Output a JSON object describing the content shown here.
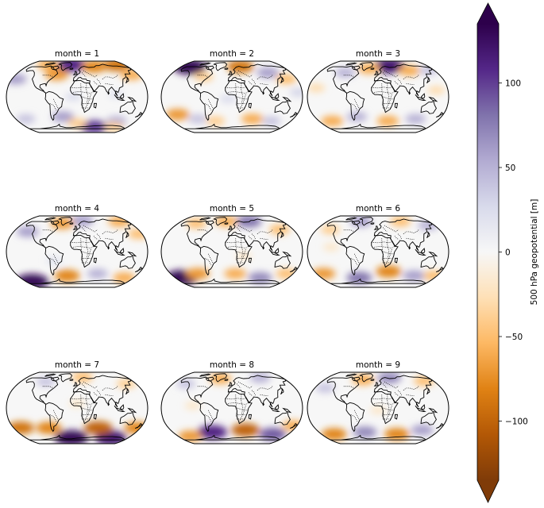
{
  "chart_data": {
    "type": "map-grid",
    "projection": "Robinson",
    "panels": [
      {
        "title": "month = 1",
        "anomalies": [
          {
            "lon": -20,
            "lat": 75,
            "value": 110
          },
          {
            "lon": 60,
            "lat": 70,
            "value": -80
          },
          {
            "lon": 150,
            "lat": 75,
            "value": -90
          },
          {
            "lon": -110,
            "lat": 75,
            "value": -60
          },
          {
            "lon": -170,
            "lat": 40,
            "value": 60
          },
          {
            "lon": 160,
            "lat": 50,
            "value": -60
          },
          {
            "lon": -60,
            "lat": 50,
            "value": -70
          },
          {
            "lon": -40,
            "lat": -45,
            "value": 60
          },
          {
            "lon": 60,
            "lat": -70,
            "value": 100
          },
          {
            "lon": 0,
            "lat": -60,
            "value": -40
          },
          {
            "lon": -150,
            "lat": -50,
            "value": 40
          },
          {
            "lon": 120,
            "lat": -55,
            "value": 50
          },
          {
            "lon": 130,
            "lat": -70,
            "value": -40
          },
          {
            "lon": -10,
            "lat": 0,
            "value": 25
          },
          {
            "lon": 100,
            "lat": 5,
            "value": 20
          }
        ]
      },
      {
        "title": "month = 2",
        "anomalies": [
          {
            "lon": -150,
            "lat": 70,
            "value": 130
          },
          {
            "lon": 30,
            "lat": 70,
            "value": -90
          },
          {
            "lon": 110,
            "lat": 55,
            "value": 60
          },
          {
            "lon": 150,
            "lat": 40,
            "value": -50
          },
          {
            "lon": -80,
            "lat": 45,
            "value": -40
          },
          {
            "lon": -150,
            "lat": -40,
            "value": -70
          },
          {
            "lon": -100,
            "lat": -50,
            "value": 40
          },
          {
            "lon": -50,
            "lat": -55,
            "value": -40
          },
          {
            "lon": 60,
            "lat": -50,
            "value": -60
          },
          {
            "lon": 120,
            "lat": -55,
            "value": 40
          },
          {
            "lon": -10,
            "lat": -5,
            "value": 25
          },
          {
            "lon": 170,
            "lat": 10,
            "value": 30
          }
        ]
      },
      {
        "title": "month = 3",
        "anomalies": [
          {
            "lon": 40,
            "lat": 72,
            "value": 120
          },
          {
            "lon": -30,
            "lat": 65,
            "value": -60
          },
          {
            "lon": 100,
            "lat": 60,
            "value": -60
          },
          {
            "lon": -100,
            "lat": 55,
            "value": 50
          },
          {
            "lon": 160,
            "lat": 60,
            "value": 40
          },
          {
            "lon": -140,
            "lat": -55,
            "value": -60
          },
          {
            "lon": -60,
            "lat": -45,
            "value": 50
          },
          {
            "lon": 30,
            "lat": -55,
            "value": -60
          },
          {
            "lon": 110,
            "lat": -50,
            "value": 50
          },
          {
            "lon": -160,
            "lat": 20,
            "value": -30
          },
          {
            "lon": 150,
            "lat": 15,
            "value": -30
          }
        ]
      },
      {
        "title": "month = 4",
        "anomalies": [
          {
            "lon": 20,
            "lat": 72,
            "value": 60
          },
          {
            "lon": -50,
            "lat": 65,
            "value": -70
          },
          {
            "lon": 150,
            "lat": 70,
            "value": -60
          },
          {
            "lon": -140,
            "lat": 45,
            "value": 60
          },
          {
            "lon": 170,
            "lat": 40,
            "value": -50
          },
          {
            "lon": -160,
            "lat": -70,
            "value": 130
          },
          {
            "lon": -30,
            "lat": -55,
            "value": -80
          },
          {
            "lon": 60,
            "lat": -50,
            "value": 50
          },
          {
            "lon": 150,
            "lat": -60,
            "value": -60
          },
          {
            "lon": -60,
            "lat": -20,
            "value": 20
          }
        ]
      },
      {
        "title": "month = 5",
        "anomalies": [
          {
            "lon": 60,
            "lat": 70,
            "value": 80
          },
          {
            "lon": -20,
            "lat": 70,
            "value": -60
          },
          {
            "lon": -120,
            "lat": 65,
            "value": -50
          },
          {
            "lon": 140,
            "lat": 50,
            "value": -50
          },
          {
            "lon": -160,
            "lat": -60,
            "value": 130
          },
          {
            "lon": -100,
            "lat": -50,
            "value": -70
          },
          {
            "lon": 10,
            "lat": -50,
            "value": -60
          },
          {
            "lon": 90,
            "lat": -60,
            "value": 70
          },
          {
            "lon": 160,
            "lat": -50,
            "value": -50
          },
          {
            "lon": 30,
            "lat": -10,
            "value": -20
          }
        ]
      },
      {
        "title": "month = 6",
        "anomalies": [
          {
            "lon": -60,
            "lat": 70,
            "value": 60
          },
          {
            "lon": 80,
            "lat": 70,
            "value": -50
          },
          {
            "lon": 160,
            "lat": 60,
            "value": 50
          },
          {
            "lon": -140,
            "lat": 50,
            "value": -40
          },
          {
            "lon": -160,
            "lat": -50,
            "value": -70
          },
          {
            "lon": -60,
            "lat": -60,
            "value": 80
          },
          {
            "lon": 30,
            "lat": -45,
            "value": -80
          },
          {
            "lon": 110,
            "lat": -55,
            "value": 60
          },
          {
            "lon": 170,
            "lat": -55,
            "value": -50
          },
          {
            "lon": -120,
            "lat": 10,
            "value": -20
          }
        ]
      },
      {
        "title": "month = 7",
        "anomalies": [
          {
            "lon": 20,
            "lat": 72,
            "value": -50
          },
          {
            "lon": -100,
            "lat": 60,
            "value": 40
          },
          {
            "lon": 150,
            "lat": 55,
            "value": -40
          },
          {
            "lon": -160,
            "lat": -45,
            "value": -90
          },
          {
            "lon": -20,
            "lat": -70,
            "value": 130
          },
          {
            "lon": 120,
            "lat": -70,
            "value": 120
          },
          {
            "lon": 60,
            "lat": -45,
            "value": -100
          },
          {
            "lon": -80,
            "lat": -45,
            "value": -80
          },
          {
            "lon": 170,
            "lat": -45,
            "value": -80
          },
          {
            "lon": 0,
            "lat": 10,
            "value": -20
          }
        ]
      },
      {
        "title": "month = 8",
        "anomalies": [
          {
            "lon": -40,
            "lat": 68,
            "value": -60
          },
          {
            "lon": 100,
            "lat": 70,
            "value": 50
          },
          {
            "lon": -140,
            "lat": 55,
            "value": 40
          },
          {
            "lon": -60,
            "lat": -55,
            "value": 110
          },
          {
            "lon": 40,
            "lat": -50,
            "value": -100
          },
          {
            "lon": 130,
            "lat": -60,
            "value": 90
          },
          {
            "lon": -140,
            "lat": -65,
            "value": -70
          },
          {
            "lon": 170,
            "lat": -40,
            "value": -60
          },
          {
            "lon": -100,
            "lat": 5,
            "value": -20
          }
        ]
      },
      {
        "title": "month = 9",
        "anomalies": [
          {
            "lon": 40,
            "lat": 70,
            "value": 70
          },
          {
            "lon": -50,
            "lat": 65,
            "value": -60
          },
          {
            "lon": 150,
            "lat": 62,
            "value": -50
          },
          {
            "lon": -150,
            "lat": 45,
            "value": 40
          },
          {
            "lon": -140,
            "lat": -60,
            "value": -80
          },
          {
            "lon": -40,
            "lat": -55,
            "value": 70
          },
          {
            "lon": 60,
            "lat": -60,
            "value": -80
          },
          {
            "lon": 130,
            "lat": -50,
            "value": 60
          },
          {
            "lon": 0,
            "lat": -5,
            "value": -20
          }
        ]
      }
    ],
    "colorbar": {
      "label": "500 hPa geopotential [m]",
      "colormap": "PuOr",
      "range": [
        -135,
        135
      ],
      "ticks": [
        -100,
        -50,
        0,
        50,
        100
      ],
      "extend": "both",
      "orientation": "vertical",
      "colors": [
        "#7f3b08",
        "#b35806",
        "#e08214",
        "#fdb863",
        "#fee0b6",
        "#f7f7f7",
        "#d8daeb",
        "#b2abd2",
        "#8073ac",
        "#542788",
        "#2d004b"
      ]
    }
  }
}
